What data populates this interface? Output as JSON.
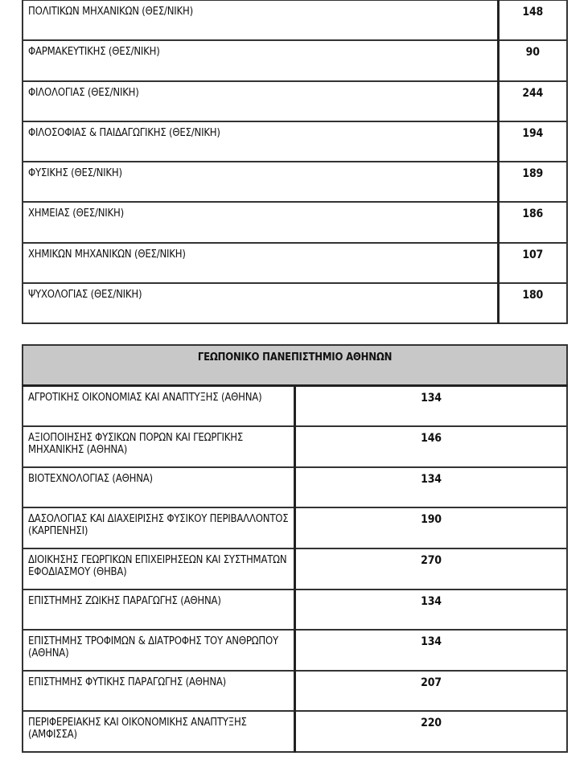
{
  "sections": [
    {
      "title": "",
      "rows": [
        {
          "name": "ΠΟΛΙΤΙΚΩΝ ΜΗΧΑΝΙΚΩΝ (ΘΕΣ/ΝΙΚΗ)",
          "value": "148"
        },
        {
          "name": "ΦΑΡΜΑΚΕΥΤΙΚΗΣ (ΘΕΣ/ΝΙΚΗ)",
          "value": "90"
        },
        {
          "name": "ΦΙΛΟΛΟΓΙΑΣ (ΘΕΣ/ΝΙΚΗ)",
          "value": "244"
        },
        {
          "name": "ΦΙΛΟΣΟΦΙΑΣ & ΠΑΙΔΑΓΩΓΙΚΗΣ (ΘΕΣ/ΝΙΚΗ)",
          "value": "194"
        },
        {
          "name": "ΦΥΣΙΚΗΣ  (ΘΕΣ/ΝΙΚΗ)",
          "value": "189"
        },
        {
          "name": "ΧΗΜΕΙΑΣ (ΘΕΣ/ΝΙΚΗ)",
          "value": "186"
        },
        {
          "name": "ΧΗΜΙΚΩΝ ΜΗΧΑΝΙΚΩΝ  (ΘΕΣ/ΝΙΚΗ)",
          "value": "107"
        },
        {
          "name": "ΨΥΧΟΛΟΓΙΑΣ (ΘΕΣ/ΝΙΚΗ)",
          "value": "180"
        }
      ]
    },
    {
      "title": "ΓΕΩΠΟΝΙΚΟ ΠΑΝΕΠΙΣΤΗΜΙΟ ΑΘΗΝΩΝ",
      "rows": [
        {
          "name": "ΑΓΡΟΤΙΚΗΣ ΟΙΚΟΝΟΜΙΑΣ  ΚΑΙ ΑΝΑΠΤΥΞΗΣ (ΑΘΗΝΑ)",
          "value": "134"
        },
        {
          "name": "ΑΞΙΟΠΟΙΗΣΗΣ ΦΥΣΙΚΩΝ ΠΟΡΩΝ ΚΑΙ ΓΕΩΡΓΙΚΗΣ ΜΗΧΑΝΙΚΗΣ (ΑΘΗΝΑ)",
          "value": "146"
        },
        {
          "name": "ΒΙΟΤΕΧΝΟΛΟΓΙΑΣ (ΑΘΗΝΑ)",
          "value": "134"
        },
        {
          "name": "ΔΑΣΟΛΟΓΙΑΣ ΚΑΙ ΔΙΑΧΕΙΡΙΣΗΣ ΦΥΣΙΚΟΥ ΠΕΡΙΒΑΛΛΟΝΤΟΣ (ΚΑΡΠΕΝΗΣΙ)",
          "value": "190"
        },
        {
          "name": "ΔΙΟΙΚΗΣΗΣ ΓΕΩΡΓΙΚΩΝ ΕΠΙΧΕΙΡΗΣΕΩΝ ΚΑΙ ΣΥΣΤΗΜΑΤΩΝ ΕΦΟΔΙΑΣΜΟΥ (ΘΗΒΑ)",
          "value": "270"
        },
        {
          "name": "ΕΠΙΣΤΗΜΗΣ ΖΩΙΚΗΣ ΠΑΡΑΓΩΓΗΣ (ΑΘΗΝΑ)",
          "value": "134"
        },
        {
          "name": "ΕΠΙΣΤΗΜΗΣ ΤΡΟΦΙΜΩΝ & ΔΙΑΤΡΟΦΗΣ ΤΟΥ ΑΝΘΡΩΠΟΥ (ΑΘΗΝΑ)",
          "value": "134"
        },
        {
          "name": "ΕΠΙΣΤΗΜΗΣ ΦΥΤΙΚΗΣ ΠΑΡΑΓΩΓΗΣ (ΑΘΗΝΑ)",
          "value": "207"
        },
        {
          "name": "ΠΕΡΙΦΕΡΕΙΑΚΗΣ ΚΑΙ ΟΙΚΟΝΟΜΙΚΗΣ ΑΝΑΠΤΥΞΗΣ (ΑΜΦΙΣΣΑ)",
          "value": "220"
        }
      ]
    }
  ]
}
